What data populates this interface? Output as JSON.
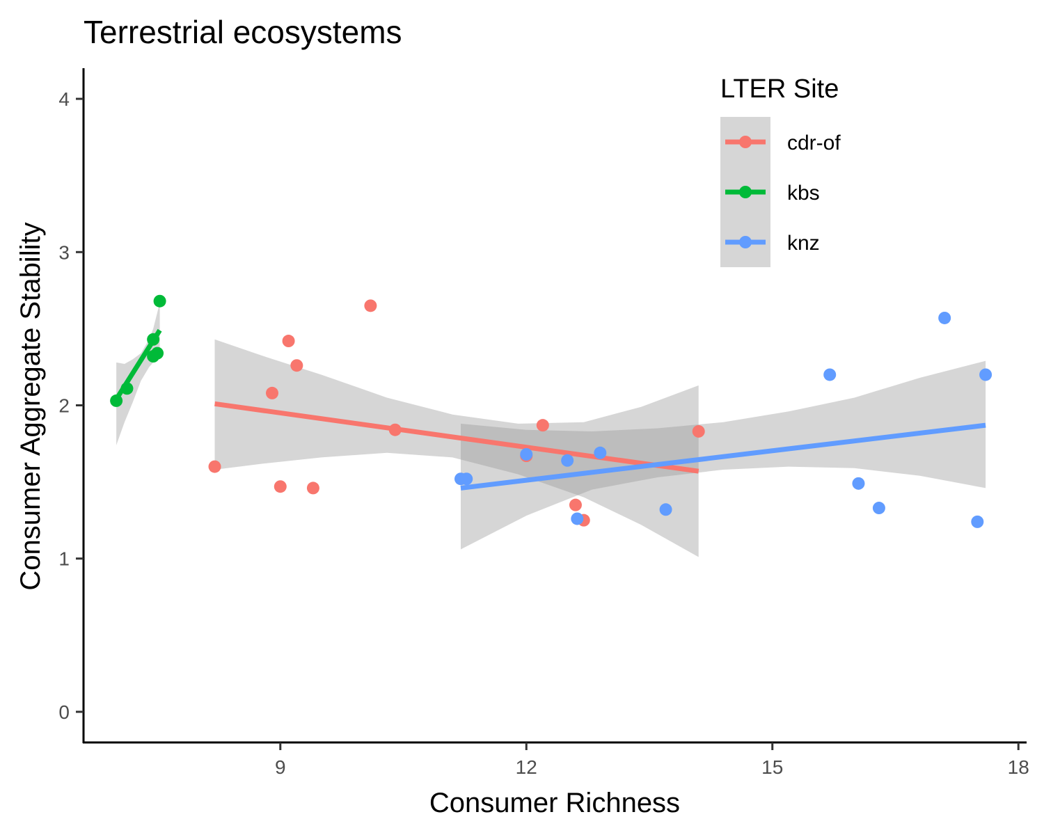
{
  "chart_data": {
    "type": "scatter",
    "title": "Terrestrial ecosystems",
    "xlabel": "Consumer Richness",
    "ylabel": "Consumer Aggregate Stability",
    "xlim": [
      6.6,
      18.1
    ],
    "ylim": [
      -0.2,
      4.2
    ],
    "xticks": [
      9,
      12,
      15,
      18
    ],
    "yticks": [
      0,
      1,
      2,
      3,
      4
    ],
    "legend_title": "LTER Site",
    "legend_position": "top-right",
    "grid": false,
    "smoothing": "linear fit with confidence band",
    "series": [
      {
        "name": "cdr-of",
        "color": "#F8766D",
        "points": [
          [
            8.2,
            1.6
          ],
          [
            8.9,
            2.08
          ],
          [
            9.0,
            1.47
          ],
          [
            9.1,
            2.42
          ],
          [
            9.2,
            2.26
          ],
          [
            9.4,
            1.46
          ],
          [
            10.1,
            2.65
          ],
          [
            10.4,
            1.84
          ],
          [
            12.0,
            1.67
          ],
          [
            12.2,
            1.87
          ],
          [
            12.6,
            1.35
          ],
          [
            12.7,
            1.25
          ],
          [
            14.1,
            1.83
          ]
        ],
        "fit": {
          "x0": 8.2,
          "y0": 2.01,
          "x1": 14.1,
          "y1": 1.57
        },
        "band": [
          [
            8.2,
            1.58,
            2.43
          ],
          [
            8.8,
            1.62,
            2.32
          ],
          [
            9.5,
            1.66,
            2.2
          ],
          [
            10.3,
            1.69,
            2.05
          ],
          [
            11.1,
            1.66,
            1.94
          ],
          [
            11.9,
            1.55,
            1.88
          ],
          [
            12.7,
            1.4,
            1.89
          ],
          [
            13.4,
            1.22,
            1.99
          ],
          [
            14.1,
            1.01,
            2.13
          ]
        ]
      },
      {
        "name": "kbs",
        "color": "#00BA38",
        "points": [
          [
            7.0,
            2.03
          ],
          [
            7.13,
            2.11
          ],
          [
            7.45,
            2.43
          ],
          [
            7.45,
            2.32
          ],
          [
            7.5,
            2.34
          ],
          [
            7.53,
            2.68
          ]
        ],
        "fit": {
          "x0": 7.0,
          "y0": 2.04,
          "x1": 7.53,
          "y1": 2.49
        },
        "band": [
          [
            7.0,
            1.74,
            2.28
          ],
          [
            7.1,
            1.89,
            2.27
          ],
          [
            7.2,
            2.02,
            2.3
          ],
          [
            7.3,
            2.16,
            2.34
          ],
          [
            7.4,
            2.25,
            2.43
          ],
          [
            7.45,
            2.28,
            2.5
          ],
          [
            7.53,
            2.31,
            2.67
          ]
        ]
      },
      {
        "name": "knz",
        "color": "#619CFF",
        "points": [
          [
            11.2,
            1.52
          ],
          [
            11.27,
            1.52
          ],
          [
            12.0,
            1.68
          ],
          [
            12.5,
            1.64
          ],
          [
            12.62,
            1.26
          ],
          [
            12.9,
            1.69
          ],
          [
            13.7,
            1.32
          ],
          [
            15.7,
            2.2
          ],
          [
            16.05,
            1.49
          ],
          [
            16.3,
            1.33
          ],
          [
            17.1,
            2.57
          ],
          [
            17.5,
            1.24
          ],
          [
            17.6,
            2.2
          ]
        ],
        "fit": {
          "x0": 11.2,
          "y0": 1.46,
          "x1": 17.6,
          "y1": 1.87
        },
        "band": [
          [
            11.2,
            1.06,
            1.88
          ],
          [
            12.0,
            1.28,
            1.84
          ],
          [
            12.8,
            1.45,
            1.83
          ],
          [
            13.6,
            1.53,
            1.85
          ],
          [
            14.4,
            1.58,
            1.89
          ],
          [
            15.2,
            1.6,
            1.96
          ],
          [
            16.0,
            1.59,
            2.05
          ],
          [
            16.8,
            1.54,
            2.18
          ],
          [
            17.6,
            1.46,
            2.29
          ]
        ]
      }
    ]
  }
}
